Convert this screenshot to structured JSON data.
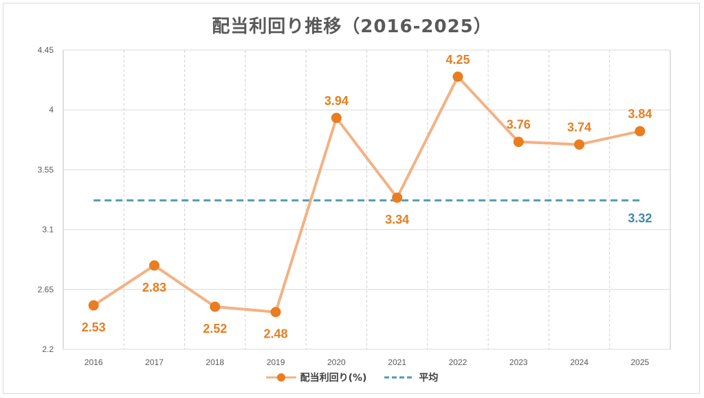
{
  "chart_data": {
    "type": "line",
    "title": "配当利回り推移（2016-2025）",
    "categories": [
      "2016",
      "2017",
      "2018",
      "2019",
      "2020",
      "2021",
      "2022",
      "2023",
      "2024",
      "2025"
    ],
    "series": [
      {
        "name": "配当利回り(%)",
        "values": [
          2.53,
          2.83,
          2.52,
          2.48,
          3.94,
          3.34,
          4.25,
          3.76,
          3.74,
          3.84
        ],
        "color": "#f4b183",
        "marker_color": "#e97d1f",
        "label_color": "#e97d1f"
      },
      {
        "name": "平均",
        "values": [
          3.32,
          3.32,
          3.32,
          3.32,
          3.32,
          3.32,
          3.32,
          3.32,
          3.32,
          3.32
        ],
        "color": "#4e99b5",
        "style": "dashed",
        "label": "3.32",
        "label_color": "#3e8aa8"
      }
    ],
    "y_ticks": [
      "2.2",
      "2.65",
      "3.1",
      "3.55",
      "4",
      "4.45"
    ],
    "y_tick_values": [
      2.2,
      2.65,
      3.1,
      3.55,
      4.0,
      4.45
    ],
    "ylim": [
      2.2,
      4.45
    ],
    "grid": true,
    "legend_position": "bottom"
  }
}
